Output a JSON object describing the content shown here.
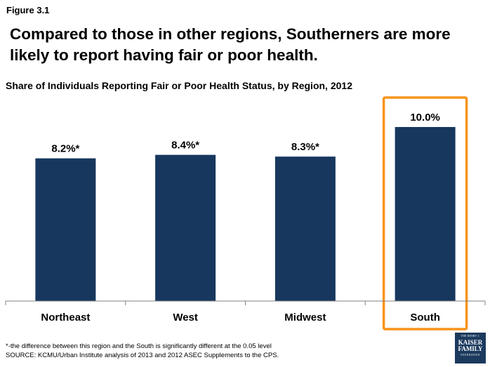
{
  "figure_label": "Figure 3.1",
  "headline": "Compared to those in other regions, Southerners are more likely to report having fair or poor health.",
  "chart_data": {
    "type": "bar",
    "title": "Share of Individuals Reporting Fair or Poor Health Status, by Region, 2012",
    "categories": [
      "Northeast",
      "West",
      "Midwest",
      "South"
    ],
    "values": [
      8.2,
      8.4,
      8.3,
      10.0
    ],
    "data_labels": [
      "8.2%*",
      "8.4%*",
      "8.3%*",
      "10.0%"
    ],
    "ylim": [
      0,
      10.0
    ],
    "bar_color": "#17375e",
    "highlight": {
      "category": "South",
      "color": "#f7941d"
    },
    "grid": false
  },
  "footnotes": {
    "significance": "*-the difference between this region and the South is significantly different at the 0.05 level",
    "source": "SOURCE: KCMU/Urban Institute analysis of 2013 and 2012 ASEC Supplements to the CPS."
  },
  "logo": {
    "line1": "THE HENRY J.",
    "line2": "KAISER",
    "line3": "FAMILY",
    "line4": "FOUNDATION"
  }
}
